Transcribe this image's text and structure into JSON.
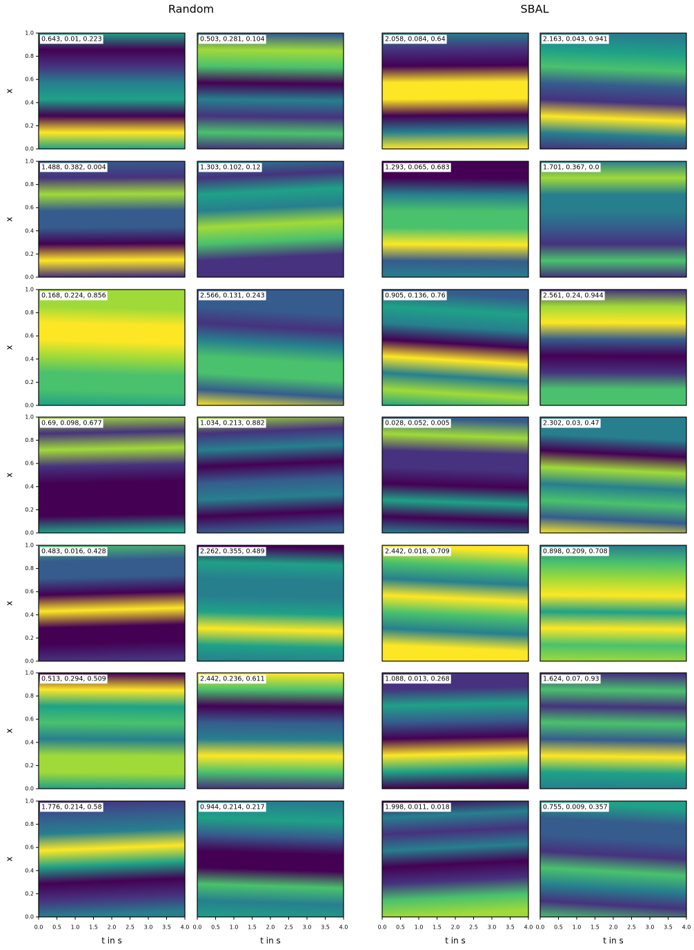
{
  "chart_data": {
    "type": "heatmap",
    "group_titles": [
      "Random",
      "SBAL"
    ],
    "xlabel": "t in s",
    "ylabel": "x",
    "xlim": [
      0,
      4
    ],
    "xticks": [
      {
        "value": 0,
        "label": "0.0"
      },
      {
        "value": 0.5,
        "label": "0.5"
      },
      {
        "value": 1,
        "label": "1.0"
      },
      {
        "value": 1.5,
        "label": "1.5"
      },
      {
        "value": 2,
        "label": "2.0"
      },
      {
        "value": 2.5,
        "label": "2.5"
      },
      {
        "value": 3,
        "label": "3.0"
      },
      {
        "value": 3.5,
        "label": "3.5"
      },
      {
        "value": 4,
        "label": "4.0"
      }
    ],
    "ylim": [
      0,
      1
    ],
    "yticks": [
      {
        "value": 0,
        "label": "0.0"
      },
      {
        "value": 0.2,
        "label": "0.2"
      },
      {
        "value": 0.4,
        "label": "0.4"
      },
      {
        "value": 0.6,
        "label": "0.6"
      },
      {
        "value": 0.8,
        "label": "0.8"
      },
      {
        "value": 1,
        "label": "1.0"
      }
    ],
    "panel_labels": [
      [
        "0.643, 0.01, 0.223",
        "0.503, 0.281, 0.104",
        "2.058, 0.084, 0.64",
        "2.163, 0.043, 0.941"
      ],
      [
        "1.488, 0.382, 0.004",
        "1.303, 0.102, 0.12",
        "1.293, 0.065, 0.683",
        "1.701, 0.367, 0.0"
      ],
      [
        "0.168, 0.224, 0.856",
        "2.566, 0.131, 0.243",
        "0.905, 0.136, 0.76",
        "2.561, 0.24, 0.944"
      ],
      [
        "0.69, 0.098, 0.677",
        "1.034, 0.213, 0.882",
        "0.028, 0.052, 0.005",
        "2.302, 0.03, 0.47"
      ],
      [
        "0.483, 0.016, 0.428",
        "2.262, 0.355, 0.489",
        "2.442, 0.018, 0.709",
        "0.898, 0.209, 0.708"
      ],
      [
        "0.513, 0.294, 0.509",
        "2.442, 0.236, 0.611",
        "1.088, 0.013, 0.268",
        "1.624, 0.07, 0.93"
      ],
      [
        "1.776, 0.214, 0.58",
        "0.944, 0.214, 0.217",
        "1.998, 0.011, 0.018",
        "0.755, 0.009, 0.357"
      ]
    ]
  }
}
